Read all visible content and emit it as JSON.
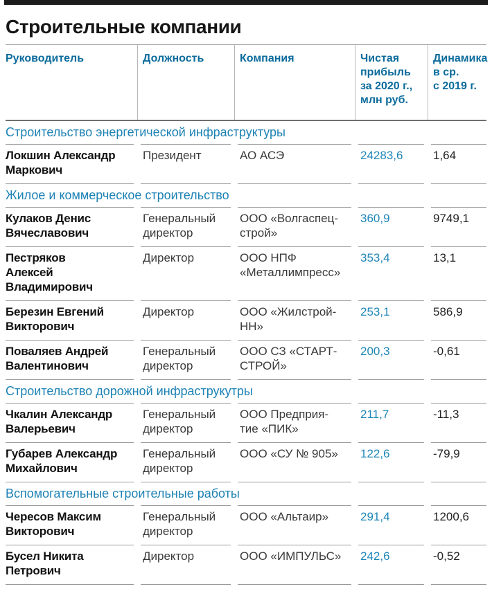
{
  "page_title": "Строительные компании",
  "columns": {
    "manager": "Руководитель",
    "position": "Должность",
    "company": "Компания",
    "profit": "Чистая\nприбыль\nза 2020 г.,\nмлн руб.",
    "dynamics": "Динамика\nв ср.\nс 2019 г."
  },
  "sections": [
    {
      "title": "Строительство энергетической инфраструктуры",
      "rows": [
        {
          "name": "Локшин Александр\nМаркович",
          "position": "Президент",
          "company": "АО АСЭ",
          "profit": "24283,6",
          "dynamics": "1,64"
        }
      ]
    },
    {
      "title": "Жилое и коммерческое строительство",
      "rows": [
        {
          "name": "Кулаков Денис\nВячеславович",
          "position": "Генеральный\nдиректор",
          "company": "ООО «Волгаспец-\nстрой»",
          "profit": "360,9",
          "dynamics": "9749,1"
        },
        {
          "name": "Пестряков\nАлексей\nВладимирович",
          "position": "Директор",
          "company": "ООО НПФ\n«Металлимпресс»",
          "profit": "353,4",
          "dynamics": "13,1"
        },
        {
          "name": "Березин Евгений\nВикторович",
          "position": "Директор",
          "company": "ООО «Жилстрой-\nНН»",
          "profit": "253,1",
          "dynamics": "586,9"
        },
        {
          "name": "Поваляев Андрей\nВалентинович",
          "position": "Генеральный\nдиректор",
          "company": "ООО СЗ «СТАРТ-\nСТРОЙ»",
          "profit": "200,3",
          "dynamics": "-0,61"
        }
      ]
    },
    {
      "title": "Строительство дорожной инфраструкутры",
      "rows": [
        {
          "name": "Чкалин Александр\nВалерьевич",
          "position": "Генеральный\nдиректор",
          "company": "ООО Предприя-\nтие «ПИК»",
          "profit": "211,7",
          "dynamics": "-11,3"
        },
        {
          "name": "Губарев Александр\nМихайлович",
          "position": "Генеральный\nдиректор",
          "company": "ООО «СУ № 905»",
          "profit": "122,6",
          "dynamics": "-79,9"
        }
      ]
    },
    {
      "title": "Вспомогательные строительные работы",
      "rows": [
        {
          "name": "Чересов Максим\nВикторович",
          "position": "Генеральный\nдиректор",
          "company": "ООО «Альтаир»",
          "profit": "291,4",
          "dynamics": "1200,6"
        },
        {
          "name": "Бусел Никита\nПетрович",
          "position": "Директор",
          "company": "ООО «ИМПУЛЬС»",
          "profit": "242,6",
          "dynamics": "-0,52"
        }
      ]
    }
  ],
  "chart_data": {
    "type": "table",
    "title": "Строительные компании",
    "columns": [
      "Руководитель",
      "Должность",
      "Компания",
      "Чистая прибыль за 2020 г., млн руб.",
      "Динамика в ср. с 2019 г."
    ],
    "groups": [
      {
        "section": "Строительство энергетической инфраструктуры",
        "rows": [
          [
            "Локшин Александр Маркович",
            "Президент",
            "АО АСЭ",
            "24283,6",
            "1,64"
          ]
        ]
      },
      {
        "section": "Жилое и коммерческое строительство",
        "rows": [
          [
            "Кулаков Денис Вячеславович",
            "Генеральный директор",
            "ООО «Волгаспецстрой»",
            "360,9",
            "9749,1"
          ],
          [
            "Пестряков Алексей Владимирович",
            "Директор",
            "ООО НПФ «Металлимпресс»",
            "353,4",
            "13,1"
          ],
          [
            "Березин Евгений Викторович",
            "Директор",
            "ООО «Жилстрой-НН»",
            "253,1",
            "586,9"
          ],
          [
            "Поваляев Андрей Валентинович",
            "Генеральный директор",
            "ООО СЗ «СТАРТ-СТРОЙ»",
            "200,3",
            "-0,61"
          ]
        ]
      },
      {
        "section": "Строительство дорожной инфраструкутры",
        "rows": [
          [
            "Чкалин Александр Валерьевич",
            "Генеральный директор",
            "ООО Предприятие «ПИК»",
            "211,7",
            "-11,3"
          ],
          [
            "Губарев Александр Михайлович",
            "Генеральный директор",
            "ООО «СУ № 905»",
            "122,6",
            "-79,9"
          ]
        ]
      },
      {
        "section": "Вспомогательные строительные работы",
        "rows": [
          [
            "Чересов Максим Викторович",
            "Генеральный директор",
            "ООО «Альтаир»",
            "291,4",
            "1200,6"
          ],
          [
            "Бусел Никита Петрович",
            "Директор",
            "ООО «ИМПУЛЬС»",
            "242,6",
            "-0,52"
          ]
        ]
      }
    ]
  },
  "colors": {
    "header_blue": "#0b6b9c",
    "section_blue": "#1d82b4",
    "profit_blue": "#1e86b8",
    "text_black": "#121212",
    "rule_gray": "#9a9a9a",
    "top_bar": "#1c1c1c"
  }
}
